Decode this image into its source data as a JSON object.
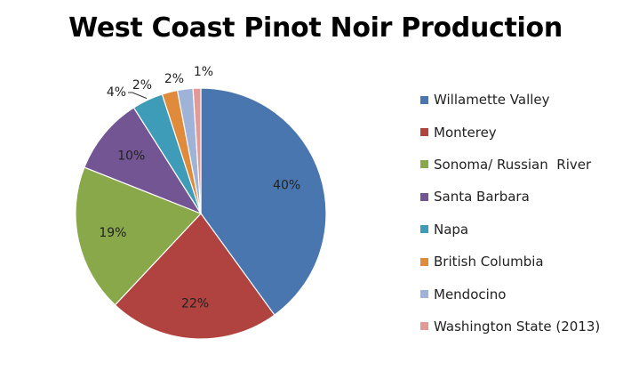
{
  "chart_data": {
    "type": "pie",
    "title": "West Coast Pinot Noir Production",
    "categories": [
      "Willamette Valley",
      "Monterey",
      "Sonoma/ Russian  River",
      "Santa Barbara",
      "Napa",
      "British Columbia",
      "Mendocino",
      "Washington State (2013)"
    ],
    "values": [
      40,
      22,
      19,
      10,
      4,
      2,
      2,
      1
    ],
    "data_labels": [
      "40%",
      "22%",
      "19%",
      "10%",
      "4%",
      "2%",
      "2%",
      "1%"
    ],
    "colors": [
      "#4a76b0",
      "#b0433f",
      "#89a84a",
      "#735594",
      "#3f9cb8",
      "#e08a3c",
      "#9fb3d9",
      "#e19a98"
    ],
    "legend_position": "right",
    "start_angle": "12 o'clock, clockwise"
  }
}
